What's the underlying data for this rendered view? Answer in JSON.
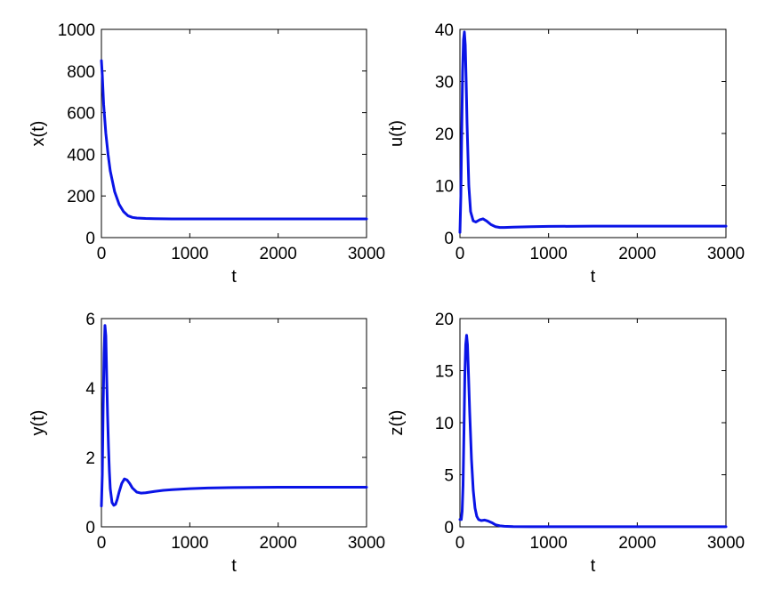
{
  "figure": {
    "line_color": "#0a14e6"
  },
  "chart_data": [
    {
      "type": "line",
      "title": "",
      "xlabel": "t",
      "ylabel": "x(t)",
      "xlim": [
        0,
        3000
      ],
      "ylim": [
        0,
        1000
      ],
      "xticks": [
        "0",
        "1000",
        "2000",
        "3000"
      ],
      "yticks": [
        "0",
        "200",
        "400",
        "600",
        "800",
        "1000"
      ],
      "xtick_values": [
        0,
        1000,
        2000,
        3000
      ],
      "ytick_values": [
        0,
        200,
        400,
        600,
        800,
        1000
      ],
      "grid": false,
      "series": [
        {
          "x": [
            0,
            10,
            25,
            50,
            75,
            100,
            150,
            200,
            250,
            300,
            350,
            400,
            500,
            600,
            800,
            1000,
            1500,
            2000,
            2500,
            3000
          ],
          "y": [
            850,
            780,
            640,
            500,
            400,
            320,
            220,
            160,
            125,
            105,
            97,
            94,
            92,
            91,
            90,
            90,
            90,
            90,
            90,
            90
          ]
        }
      ]
    },
    {
      "type": "line",
      "title": "",
      "xlabel": "t",
      "ylabel": "u(t)",
      "xlim": [
        0,
        3000
      ],
      "ylim": [
        0,
        40
      ],
      "xticks": [
        "0",
        "1000",
        "2000",
        "3000"
      ],
      "yticks": [
        "0",
        "10",
        "20",
        "30",
        "40"
      ],
      "xtick_values": [
        0,
        1000,
        2000,
        3000
      ],
      "ytick_values": [
        0,
        10,
        20,
        30,
        40
      ],
      "grid": false,
      "series": [
        {
          "x": [
            0,
            10,
            20,
            30,
            40,
            50,
            60,
            70,
            80,
            100,
            120,
            150,
            180,
            220,
            260,
            300,
            350,
            400,
            450,
            500,
            600,
            800,
            1000,
            1500,
            2000,
            2500,
            3000
          ],
          "y": [
            1,
            8,
            20,
            32,
            38,
            39.5,
            37,
            30,
            22,
            10,
            5,
            3.2,
            3.0,
            3.4,
            3.6,
            3.2,
            2.5,
            2.1,
            1.95,
            1.95,
            2.0,
            2.1,
            2.15,
            2.2,
            2.2,
            2.2,
            2.2
          ]
        }
      ]
    },
    {
      "type": "line",
      "title": "",
      "xlabel": "t",
      "ylabel": "y(t)",
      "xlim": [
        0,
        3000
      ],
      "ylim": [
        0,
        6
      ],
      "xticks": [
        "0",
        "1000",
        "2000",
        "3000"
      ],
      "yticks": [
        "0",
        "2",
        "4",
        "6"
      ],
      "xtick_values": [
        0,
        1000,
        2000,
        3000
      ],
      "ytick_values": [
        0,
        2,
        4,
        6
      ],
      "grid": false,
      "series": [
        {
          "x": [
            0,
            10,
            20,
            30,
            40,
            50,
            60,
            70,
            80,
            90,
            100,
            120,
            140,
            160,
            180,
            200,
            230,
            260,
            290,
            320,
            350,
            400,
            450,
            500,
            600,
            700,
            800,
            1000,
            1200,
            1500,
            2000,
            2500,
            3000
          ],
          "y": [
            0.6,
            1.5,
            3.5,
            5.0,
            5.8,
            5.5,
            4.3,
            3.2,
            2.3,
            1.6,
            1.1,
            0.7,
            0.62,
            0.65,
            0.8,
            1.0,
            1.25,
            1.38,
            1.35,
            1.25,
            1.12,
            1.0,
            0.97,
            0.98,
            1.02,
            1.05,
            1.07,
            1.1,
            1.12,
            1.13,
            1.14,
            1.14,
            1.14
          ]
        }
      ]
    },
    {
      "type": "line",
      "title": "",
      "xlabel": "t",
      "ylabel": "z(t)",
      "xlim": [
        0,
        3000
      ],
      "ylim": [
        0,
        20
      ],
      "xticks": [
        "0",
        "1000",
        "2000",
        "3000"
      ],
      "yticks": [
        "0",
        "5",
        "10",
        "15",
        "20"
      ],
      "xtick_values": [
        0,
        1000,
        2000,
        3000
      ],
      "ytick_values": [
        0,
        5,
        10,
        15,
        20
      ],
      "grid": false,
      "series": [
        {
          "x": [
            0,
            15,
            25,
            35,
            45,
            55,
            65,
            75,
            85,
            95,
            110,
            130,
            150,
            170,
            190,
            210,
            240,
            280,
            320,
            360,
            400,
            450,
            500,
            600,
            800,
            1000,
            1500,
            2000,
            2500,
            3000
          ],
          "y": [
            0.7,
            0.7,
            1.5,
            4.0,
            9.0,
            14.5,
            17.5,
            18.4,
            17.5,
            15.0,
            11.0,
            6.5,
            3.5,
            1.8,
            1.0,
            0.7,
            0.6,
            0.65,
            0.55,
            0.4,
            0.2,
            0.1,
            0.05,
            0.02,
            0.01,
            0.01,
            0.01,
            0.01,
            0.01,
            0.01
          ]
        }
      ]
    }
  ]
}
